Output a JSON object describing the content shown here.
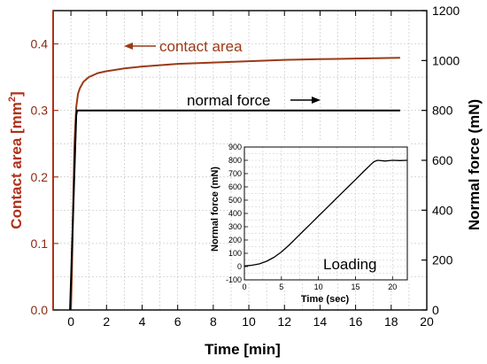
{
  "chart_data": [
    {
      "type": "line",
      "xlabel": "Time [min]",
      "ylabel_left": "Contact area [mm",
      "ylabel_left_sup": "2",
      "ylabel_left_close": "]",
      "ylabel_right": "Normal force (mN)",
      "xlim": [
        -1,
        20
      ],
      "ylim_left": [
        0,
        0.45
      ],
      "ylim_right": [
        0,
        1200
      ],
      "x_ticks": [
        "0",
        "2",
        "4",
        "6",
        "8",
        "10",
        "12",
        "14",
        "16",
        "18",
        "20"
      ],
      "y_left_ticks": [
        "0.0",
        "0.1",
        "0.2",
        "0.3",
        "0.4"
      ],
      "y_right_ticks": [
        "0",
        "200",
        "400",
        "600",
        "800",
        "1000",
        "1200"
      ],
      "grid": true,
      "colors": {
        "left_axis": "#b0301a",
        "contact_area": "#9b3a17",
        "normal_force": "#000000",
        "grid": "#c8c8c8"
      },
      "series": [
        {
          "name": "contact area",
          "axis": "left",
          "x": [
            0.0,
            0.05,
            0.1,
            0.15,
            0.2,
            0.3,
            0.4,
            0.5,
            0.7,
            1.0,
            1.5,
            2,
            3,
            4,
            5,
            6,
            8,
            10,
            12,
            14,
            16,
            18.5
          ],
          "y": [
            0.0,
            0.05,
            0.12,
            0.19,
            0.25,
            0.305,
            0.325,
            0.333,
            0.343,
            0.35,
            0.356,
            0.359,
            0.363,
            0.366,
            0.368,
            0.37,
            0.372,
            0.374,
            0.376,
            0.377,
            0.378,
            0.379
          ]
        },
        {
          "name": "normal force",
          "axis": "right",
          "x": [
            -0.05,
            0.3,
            0.35,
            18.5
          ],
          "y": [
            0,
            780,
            800,
            800
          ]
        }
      ],
      "annotations": [
        "contact area",
        "normal force"
      ]
    },
    {
      "type": "line",
      "label": "Loading",
      "xlabel": "Time (sec)",
      "ylabel": "Normal force (mN)",
      "xlim": [
        0,
        22
      ],
      "ylim": [
        -100,
        900
      ],
      "x_ticks": [
        "0",
        "5",
        "10",
        "15",
        "20"
      ],
      "y_ticks": [
        "-100",
        "0",
        "100",
        "200",
        "300",
        "400",
        "500",
        "600",
        "700",
        "800",
        "900"
      ],
      "grid": true,
      "series": [
        {
          "x": [
            0,
            1,
            2,
            3,
            4,
            5,
            6,
            7,
            8,
            9,
            10,
            11,
            12,
            13,
            14,
            15,
            16,
            17,
            17.5,
            18,
            19,
            20,
            21,
            22
          ],
          "y": [
            5,
            10,
            20,
            40,
            70,
            110,
            160,
            215,
            270,
            325,
            380,
            435,
            490,
            545,
            600,
            655,
            710,
            765,
            790,
            800,
            795,
            800,
            798,
            800
          ]
        }
      ]
    }
  ]
}
